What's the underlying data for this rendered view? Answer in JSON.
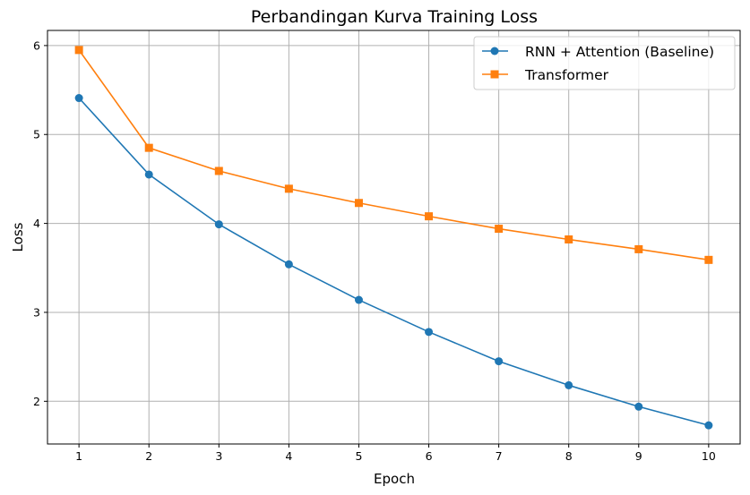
{
  "chart_data": {
    "type": "line",
    "title": "Perbandingan Kurva Training Loss",
    "xlabel": "Epoch",
    "ylabel": "Loss",
    "x": [
      1,
      2,
      3,
      4,
      5,
      6,
      7,
      8,
      9,
      10
    ],
    "xlim": [
      0.55,
      10.45
    ],
    "ylim": [
      1.52,
      6.17
    ],
    "xticks": [
      1,
      2,
      3,
      4,
      5,
      6,
      7,
      8,
      9,
      10
    ],
    "yticks": [
      2,
      3,
      4,
      5,
      6
    ],
    "grid": true,
    "legend_position": "top-right",
    "series": [
      {
        "name": "RNN + Attention (Baseline)",
        "color": "#1f77b4",
        "marker": "circle",
        "values": [
          5.41,
          4.55,
          3.99,
          3.54,
          3.14,
          2.78,
          2.45,
          2.18,
          1.94,
          1.73
        ]
      },
      {
        "name": "Transformer",
        "color": "#ff7f0e",
        "marker": "square",
        "values": [
          5.95,
          4.85,
          4.59,
          4.39,
          4.23,
          4.08,
          3.94,
          3.82,
          3.71,
          3.59
        ]
      }
    ]
  }
}
